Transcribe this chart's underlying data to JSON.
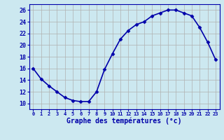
{
  "x": [
    0,
    1,
    2,
    3,
    4,
    5,
    6,
    7,
    8,
    9,
    10,
    11,
    12,
    13,
    14,
    15,
    16,
    17,
    18,
    19,
    20,
    21,
    22,
    23
  ],
  "y": [
    16,
    14.2,
    13,
    12,
    11,
    10.5,
    10.3,
    10.3,
    12,
    15.8,
    18.5,
    21,
    22.5,
    23.5,
    24,
    25,
    25.5,
    26,
    26,
    25.5,
    25,
    23,
    20.5,
    17.5
  ],
  "line_color": "#0000aa",
  "marker": "D",
  "marker_size": 2.5,
  "bg_color": "#cce8f0",
  "grid_color": "#b0b0b0",
  "xlabel": "Graphe des températures (°c)",
  "xlabel_color": "#0000aa",
  "tick_color": "#0000aa",
  "ylim": [
    9.0,
    27.0
  ],
  "yticks": [
    10,
    12,
    14,
    16,
    18,
    20,
    22,
    24,
    26
  ],
  "xlim": [
    -0.5,
    23.5
  ],
  "xtick_labels": [
    "0",
    "1",
    "2",
    "3",
    "4",
    "5",
    "6",
    "7",
    "8",
    "9",
    "10",
    "11",
    "12",
    "13",
    "14",
    "15",
    "16",
    "17",
    "18",
    "19",
    "20",
    "21",
    "22",
    "23"
  ],
  "linewidth": 1.2
}
